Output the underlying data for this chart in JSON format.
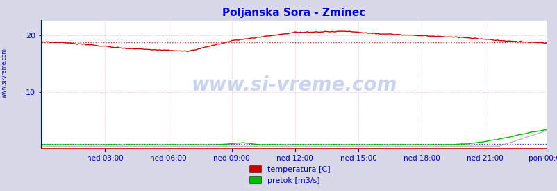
{
  "title": "Poljanska Sora - Zminec",
  "title_color": "#0000cc",
  "bg_color": "#d8d8e8",
  "plot_bg_color": "#ffffff",
  "grid_color": "#ffaaaa",
  "axis_left_color": "#0000cc",
  "axis_bottom_color": "#cc0000",
  "tick_color": "#0000aa",
  "watermark": "www.si-vreme.com",
  "watermark_color": "#3355bb",
  "legend_entries": [
    "temperatura [C]",
    "pretok [m3/s]"
  ],
  "legend_colors": [
    "#cc0000",
    "#00bb00"
  ],
  "x_tick_labels": [
    "ned 03:00",
    "ned 06:00",
    "ned 09:00",
    "ned 12:00",
    "ned 15:00",
    "ned 18:00",
    "ned 21:00",
    "pon 00:00"
  ],
  "yticks": [
    10,
    20
  ],
  "ylim": [
    0,
    22.5
  ],
  "xlim": [
    0,
    287
  ],
  "temp_ref": 18.8,
  "flow_ref": 0.9,
  "sidebar_text": "www.si-vreme.com",
  "sidebar_color": "#0000bb",
  "temp_line_color": "#cc0000",
  "flow_line_color": "#00bb00",
  "flow_fill_color": "#aaaaaa"
}
